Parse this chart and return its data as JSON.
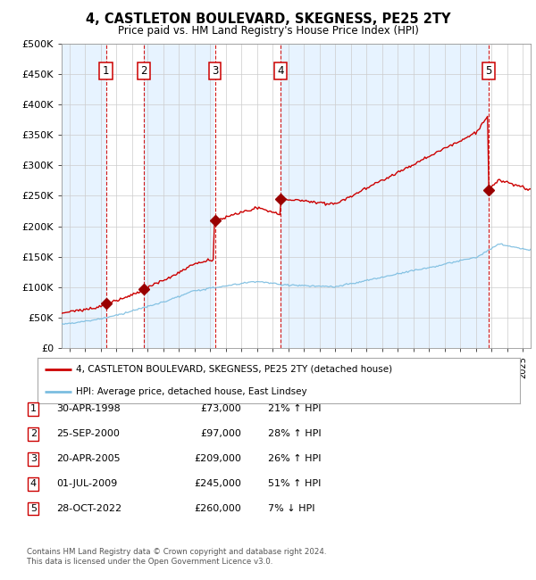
{
  "title": "4, CASTLETON BOULEVARD, SKEGNESS, PE25 2TY",
  "subtitle": "Price paid vs. HM Land Registry's House Price Index (HPI)",
  "ylabel_ticks": [
    "£0",
    "£50K",
    "£100K",
    "£150K",
    "£200K",
    "£250K",
    "£300K",
    "£350K",
    "£400K",
    "£450K",
    "£500K"
  ],
  "ytick_values": [
    0,
    50000,
    100000,
    150000,
    200000,
    250000,
    300000,
    350000,
    400000,
    450000,
    500000
  ],
  "ylim": [
    0,
    500000
  ],
  "xmin": 1995.5,
  "xmax": 2025.5,
  "sales": [
    {
      "label": "1",
      "year": 1998.33,
      "price": 73000
    },
    {
      "label": "2",
      "year": 2000.75,
      "price": 97000
    },
    {
      "label": "3",
      "year": 2005.3,
      "price": 209000
    },
    {
      "label": "4",
      "year": 2009.5,
      "price": 245000
    },
    {
      "label": "5",
      "year": 2022.83,
      "price": 260000
    }
  ],
  "hpi_color": "#7bbde0",
  "price_color": "#cc0000",
  "sale_marker_color": "#990000",
  "sale_box_edge": "#cc0000",
  "vband_color": "#ddeeff",
  "grid_color": "#cccccc",
  "background_color": "#ffffff",
  "footnote1": "Contains HM Land Registry data © Crown copyright and database right 2024.",
  "footnote2": "This data is licensed under the Open Government Licence v3.0.",
  "legend_line1": "4, CASTLETON BOULEVARD, SKEGNESS, PE25 2TY (detached house)",
  "legend_line2": "HPI: Average price, detached house, East Lindsey",
  "table_rows": [
    [
      "1",
      "30-APR-1998",
      "£73,000",
      "21% ↑ HPI"
    ],
    [
      "2",
      "25-SEP-2000",
      "£97,000",
      "28% ↑ HPI"
    ],
    [
      "3",
      "20-APR-2005",
      "£209,000",
      "26% ↑ HPI"
    ],
    [
      "4",
      "01-JUL-2009",
      "£245,000",
      "51% ↑ HPI"
    ],
    [
      "5",
      "28-OCT-2022",
      "£260,000",
      "7% ↓ HPI"
    ]
  ]
}
